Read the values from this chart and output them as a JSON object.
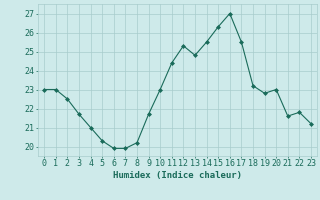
{
  "x": [
    0,
    1,
    2,
    3,
    4,
    5,
    6,
    7,
    8,
    9,
    10,
    11,
    12,
    13,
    14,
    15,
    16,
    17,
    18,
    19,
    20,
    21,
    22,
    23
  ],
  "y": [
    23.0,
    23.0,
    22.5,
    21.7,
    21.0,
    20.3,
    19.9,
    19.9,
    20.2,
    21.7,
    23.0,
    24.4,
    25.3,
    24.8,
    25.5,
    26.3,
    27.0,
    25.5,
    23.2,
    22.8,
    23.0,
    21.6,
    21.8,
    21.2
  ],
  "xlabel": "Humidex (Indice chaleur)",
  "line_color": "#1a6b5a",
  "marker_color": "#1a6b5a",
  "bg_color": "#ceeaea",
  "grid_color": "#a8cccc",
  "ylim": [
    19.5,
    27.5
  ],
  "xlim": [
    -0.5,
    23.5
  ],
  "yticks": [
    20,
    21,
    22,
    23,
    24,
    25,
    26,
    27
  ],
  "xticks": [
    0,
    1,
    2,
    3,
    4,
    5,
    6,
    7,
    8,
    9,
    10,
    11,
    12,
    13,
    14,
    15,
    16,
    17,
    18,
    19,
    20,
    21,
    22,
    23
  ],
  "xlabel_fontsize": 6.5,
  "tick_fontsize": 6.0
}
